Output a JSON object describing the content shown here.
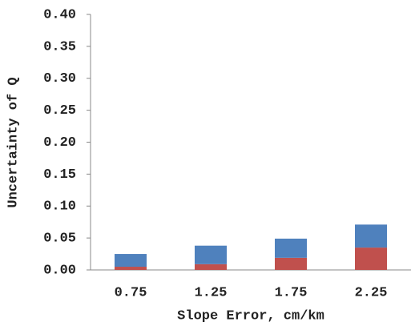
{
  "chart_data": {
    "type": "stacked_bar",
    "xlabel": "Slope Error, cm/km",
    "ylabel": "Uncertainty of Q",
    "categories": [
      "0.75",
      "1.25",
      "1.75",
      "2.25"
    ],
    "series": [
      {
        "color": "#c0504d",
        "values": [
          0.005,
          0.009,
          0.019,
          0.035
        ]
      },
      {
        "color": "#4f81bd",
        "values": [
          0.02,
          0.029,
          0.03,
          0.036
        ]
      }
    ],
    "ylim": [
      0,
      0.4
    ],
    "yticks": [
      {
        "value": 0,
        "label": "0.00"
      },
      {
        "value": 0.05,
        "label": "0.05"
      },
      {
        "value": 0.1,
        "label": "0.10"
      },
      {
        "value": 0.15,
        "label": "0.15"
      },
      {
        "value": 0.2,
        "label": "0.20"
      },
      {
        "value": 0.25,
        "label": "0.25"
      },
      {
        "value": 0.3,
        "label": "0.30"
      },
      {
        "value": 0.35,
        "label": "0.35"
      },
      {
        "value": 0.4,
        "label": "0.40"
      }
    ],
    "grid": false
  }
}
